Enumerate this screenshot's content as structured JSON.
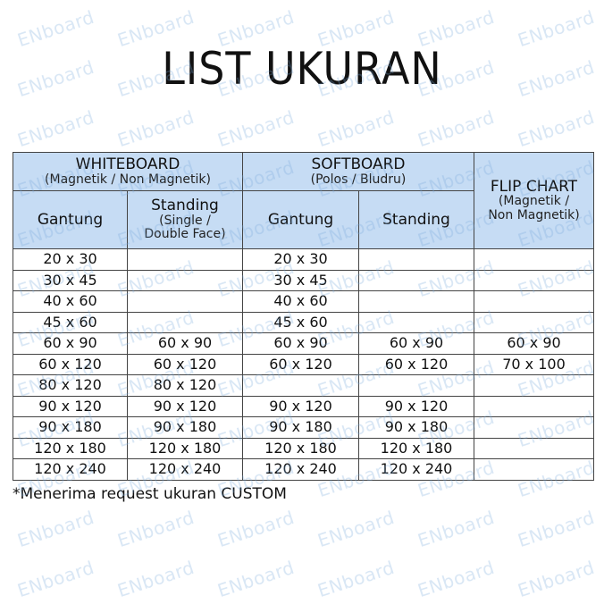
{
  "title": "LIST UKURAN",
  "watermark": "ENboard",
  "header": {
    "whiteboard": {
      "title": "WHITEBOARD",
      "sub": "(Magnetik / Non Magnetik)",
      "gantung": "Gantung",
      "standing": "Standing",
      "standing_sub1": "(Single /",
      "standing_sub2": "Double Face)"
    },
    "softboard": {
      "title": "SOFTBOARD",
      "sub": "(Polos / Bludru)",
      "gantung": "Gantung",
      "standing": "Standing"
    },
    "flipchart": {
      "title": "FLIP CHART",
      "sub1": "(Magnetik /",
      "sub2": "Non Magnetik)"
    }
  },
  "colors": {
    "header_bg": "#c6dcf4"
  },
  "rows": [
    [
      "20 x 30",
      "",
      "20 x 30",
      "",
      ""
    ],
    [
      "30 x 45",
      "",
      "30 x 45",
      "",
      ""
    ],
    [
      "40 x 60",
      "",
      "40 x 60",
      "",
      ""
    ],
    [
      "45 x 60",
      "",
      "45 x 60",
      "",
      ""
    ],
    [
      "60 x 90",
      "60 x 90",
      "60 x 90",
      "60 x 90",
      "60 x 90"
    ],
    [
      "60 x 120",
      "60 x 120",
      "60 x 120",
      "60 x 120",
      "70 x 100"
    ],
    [
      "80 x 120",
      "80 x 120",
      "",
      "",
      ""
    ],
    [
      "90 x 120",
      "90 x 120",
      "90 x 120",
      "90 x 120",
      ""
    ],
    [
      "90 x 180",
      "90 x 180",
      "90 x 180",
      "90 x 180",
      ""
    ],
    [
      "120 x 180",
      "120 x 180",
      "120 x 180",
      "120 x 180",
      ""
    ],
    [
      "120 x 240",
      "120 x 240",
      "120 x 240",
      "120 x 240",
      ""
    ]
  ],
  "note": "*Menerima request ukuran CUSTOM"
}
